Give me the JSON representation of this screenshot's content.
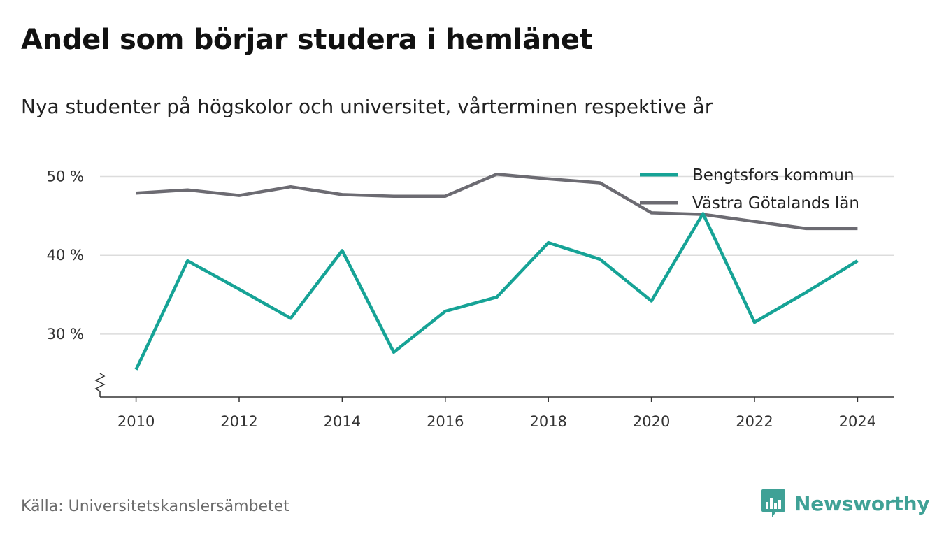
{
  "header": {
    "title": "Andel som börjar studera i hemlänet",
    "subtitle": "Nya studenter på högskolor och universitet, vårterminen respektive år"
  },
  "footer": {
    "source": "Källa: Universitetskanslersämbetet",
    "brand": "Newsworthy",
    "brand_color": "#3fa196"
  },
  "chart_data": {
    "type": "line",
    "x": [
      2010,
      2011,
      2012,
      2013,
      2014,
      2015,
      2016,
      2017,
      2018,
      2019,
      2020,
      2021,
      2022,
      2023,
      2024
    ],
    "x_ticks": [
      2010,
      2012,
      2014,
      2016,
      2018,
      2020,
      2022,
      2024
    ],
    "y_ticks": [
      30,
      40,
      50
    ],
    "y_tick_labels": [
      "30 %",
      "40 %",
      "50 %"
    ],
    "xlim": [
      2009.3,
      2024.7
    ],
    "ylim": [
      22,
      52
    ],
    "y_axis_break": true,
    "grid": true,
    "legend_position": "top-right",
    "series": [
      {
        "name": "Bengtsfors kommun",
        "color": "#16a396",
        "values": [
          25.5,
          39.3,
          35.7,
          32.0,
          40.6,
          27.7,
          32.9,
          34.7,
          41.6,
          39.5,
          34.2,
          45.3,
          31.5,
          35.3,
          39.3
        ]
      },
      {
        "name": "Västra Götalands län",
        "color": "#6c6b72",
        "values": [
          47.9,
          48.3,
          47.6,
          48.7,
          47.7,
          47.5,
          47.5,
          50.3,
          49.7,
          49.2,
          45.4,
          45.2,
          44.3,
          43.4,
          43.4
        ]
      }
    ]
  }
}
